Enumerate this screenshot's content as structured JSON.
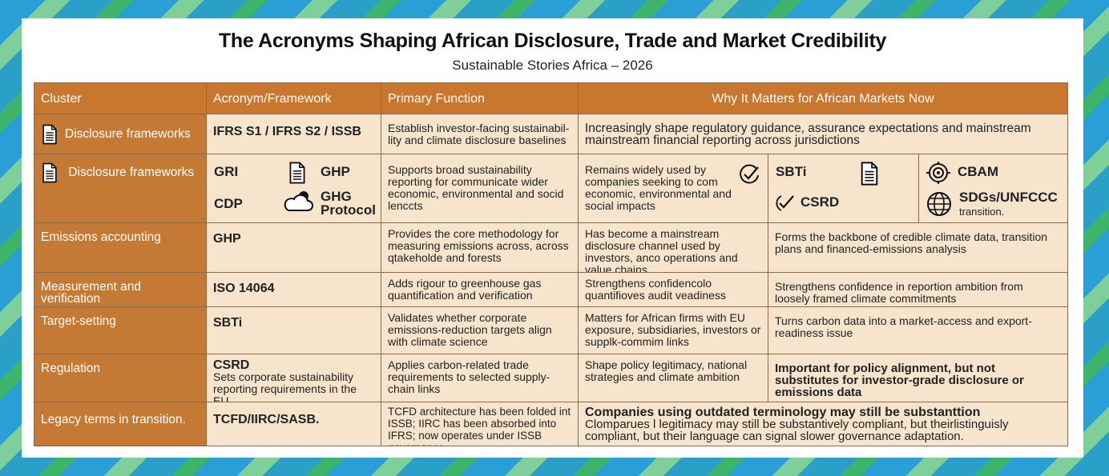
{
  "title": "The Acronyms Shaping African Disclosure, Trade and Market Credibility",
  "subtitle": "Sustainable Stories Africa – 2026",
  "headers": [
    "Cluster",
    "Acronym/Framework",
    "Primary Function",
    "Why It Matters for African Markets Now"
  ],
  "rows": [
    {
      "cluster": "Disclosure frameworks",
      "cluster_icon": "document-icon",
      "acronym": "IFRS S1 / IFRS S2 / ISSB",
      "function": "Establish investor-facing sustainabil-lity and climate disclosure baselines",
      "why": "Increasingly shape regulatory guidance, assurance expectations and mainstream mainstream financial reporting across jurisdictions"
    },
    {
      "cluster": "Disclosure frameworks",
      "cluster_icon": "document-icon",
      "acronyms": [
        {
          "label": "GRI"
        },
        {
          "label": "GHP",
          "icon": "document-icon"
        },
        {
          "label": "CDP"
        },
        {
          "label": "GHG Protocol",
          "icon": "cloud-icon"
        }
      ],
      "function": "Supports broad sustainability reporting for communicate wider economic, environmental and socid lenccts",
      "why": "Remains widely used by companies seeking to com economic, environmental and social impacts",
      "why_icon": "check-circle-icon",
      "extra_tags": [
        {
          "label": "SBTi",
          "icon": "document-icon"
        },
        {
          "label": "CSRD",
          "icon": "check-icon"
        },
        {
          "label": "CBAM",
          "icon": "target-icon"
        },
        {
          "label": "SDGs/UNFCCC",
          "icon": "globe-icon",
          "note": "transition."
        }
      ]
    },
    {
      "cluster": "Emissions accounting",
      "acronym": "GHP",
      "function": "Provides the core methodology for measuring emissions across, across qtakeholde and forests",
      "why": "Has become a mainstream disclosure channel used by investors, anco operations and value chains",
      "why2": "Forms the backbone of credible climate data, transition plans and financed-emissions analysis"
    },
    {
      "cluster": "Measurement and verification",
      "acronym": "ISO 14064",
      "function": "Adds rigour to greenhouse gas quantification and verification",
      "why": "Strengthens confidencolo quantifioves audit veadiness",
      "why2": "Strengthens confidence in reportion ambition from loosely framed climate commitments"
    },
    {
      "cluster": "Target-setting",
      "acronym": "SBTi",
      "function": "Validates whether corporate emissions-reduction targets align with climate science",
      "why": "Matters for African firms with EU exposure, subsidiaries, investors or supplk-commim links",
      "why2": "Turns carbon data into a market-access and export-readiness issue"
    },
    {
      "cluster": "Regulation",
      "acronym": "CSRD",
      "acronym_note": "Sets corporate sustainability reporting requirements in the EU",
      "function": "Applies carbon-related trade requirements to selected supply-chain links",
      "why": "Shape policy legitimacy, national strategies and climate ambition",
      "why2": "Important for policy alignment, but not substitutes for investor-grade disclosure or emissions data"
    },
    {
      "cluster": "Legacy terms in transition.",
      "acronym": "TCFD/IIRC/SASB.",
      "function": "TCFD architecture has been folded int ISSB; IIRC has been absorbed into IFRS; now operates under ISSB governance.",
      "why_bold": "Companies using outdated terminology may still be substanttion",
      "why": "Clomparues l legitimacy may still be substantively compliant, but theirlistinguisly compliant, but their language can signal slower governance adaptation."
    }
  ],
  "colors": {
    "header": "#c9772e",
    "cluster": "#c47a34",
    "cell": "#f6e4cc",
    "background": "#2a9fd6"
  }
}
